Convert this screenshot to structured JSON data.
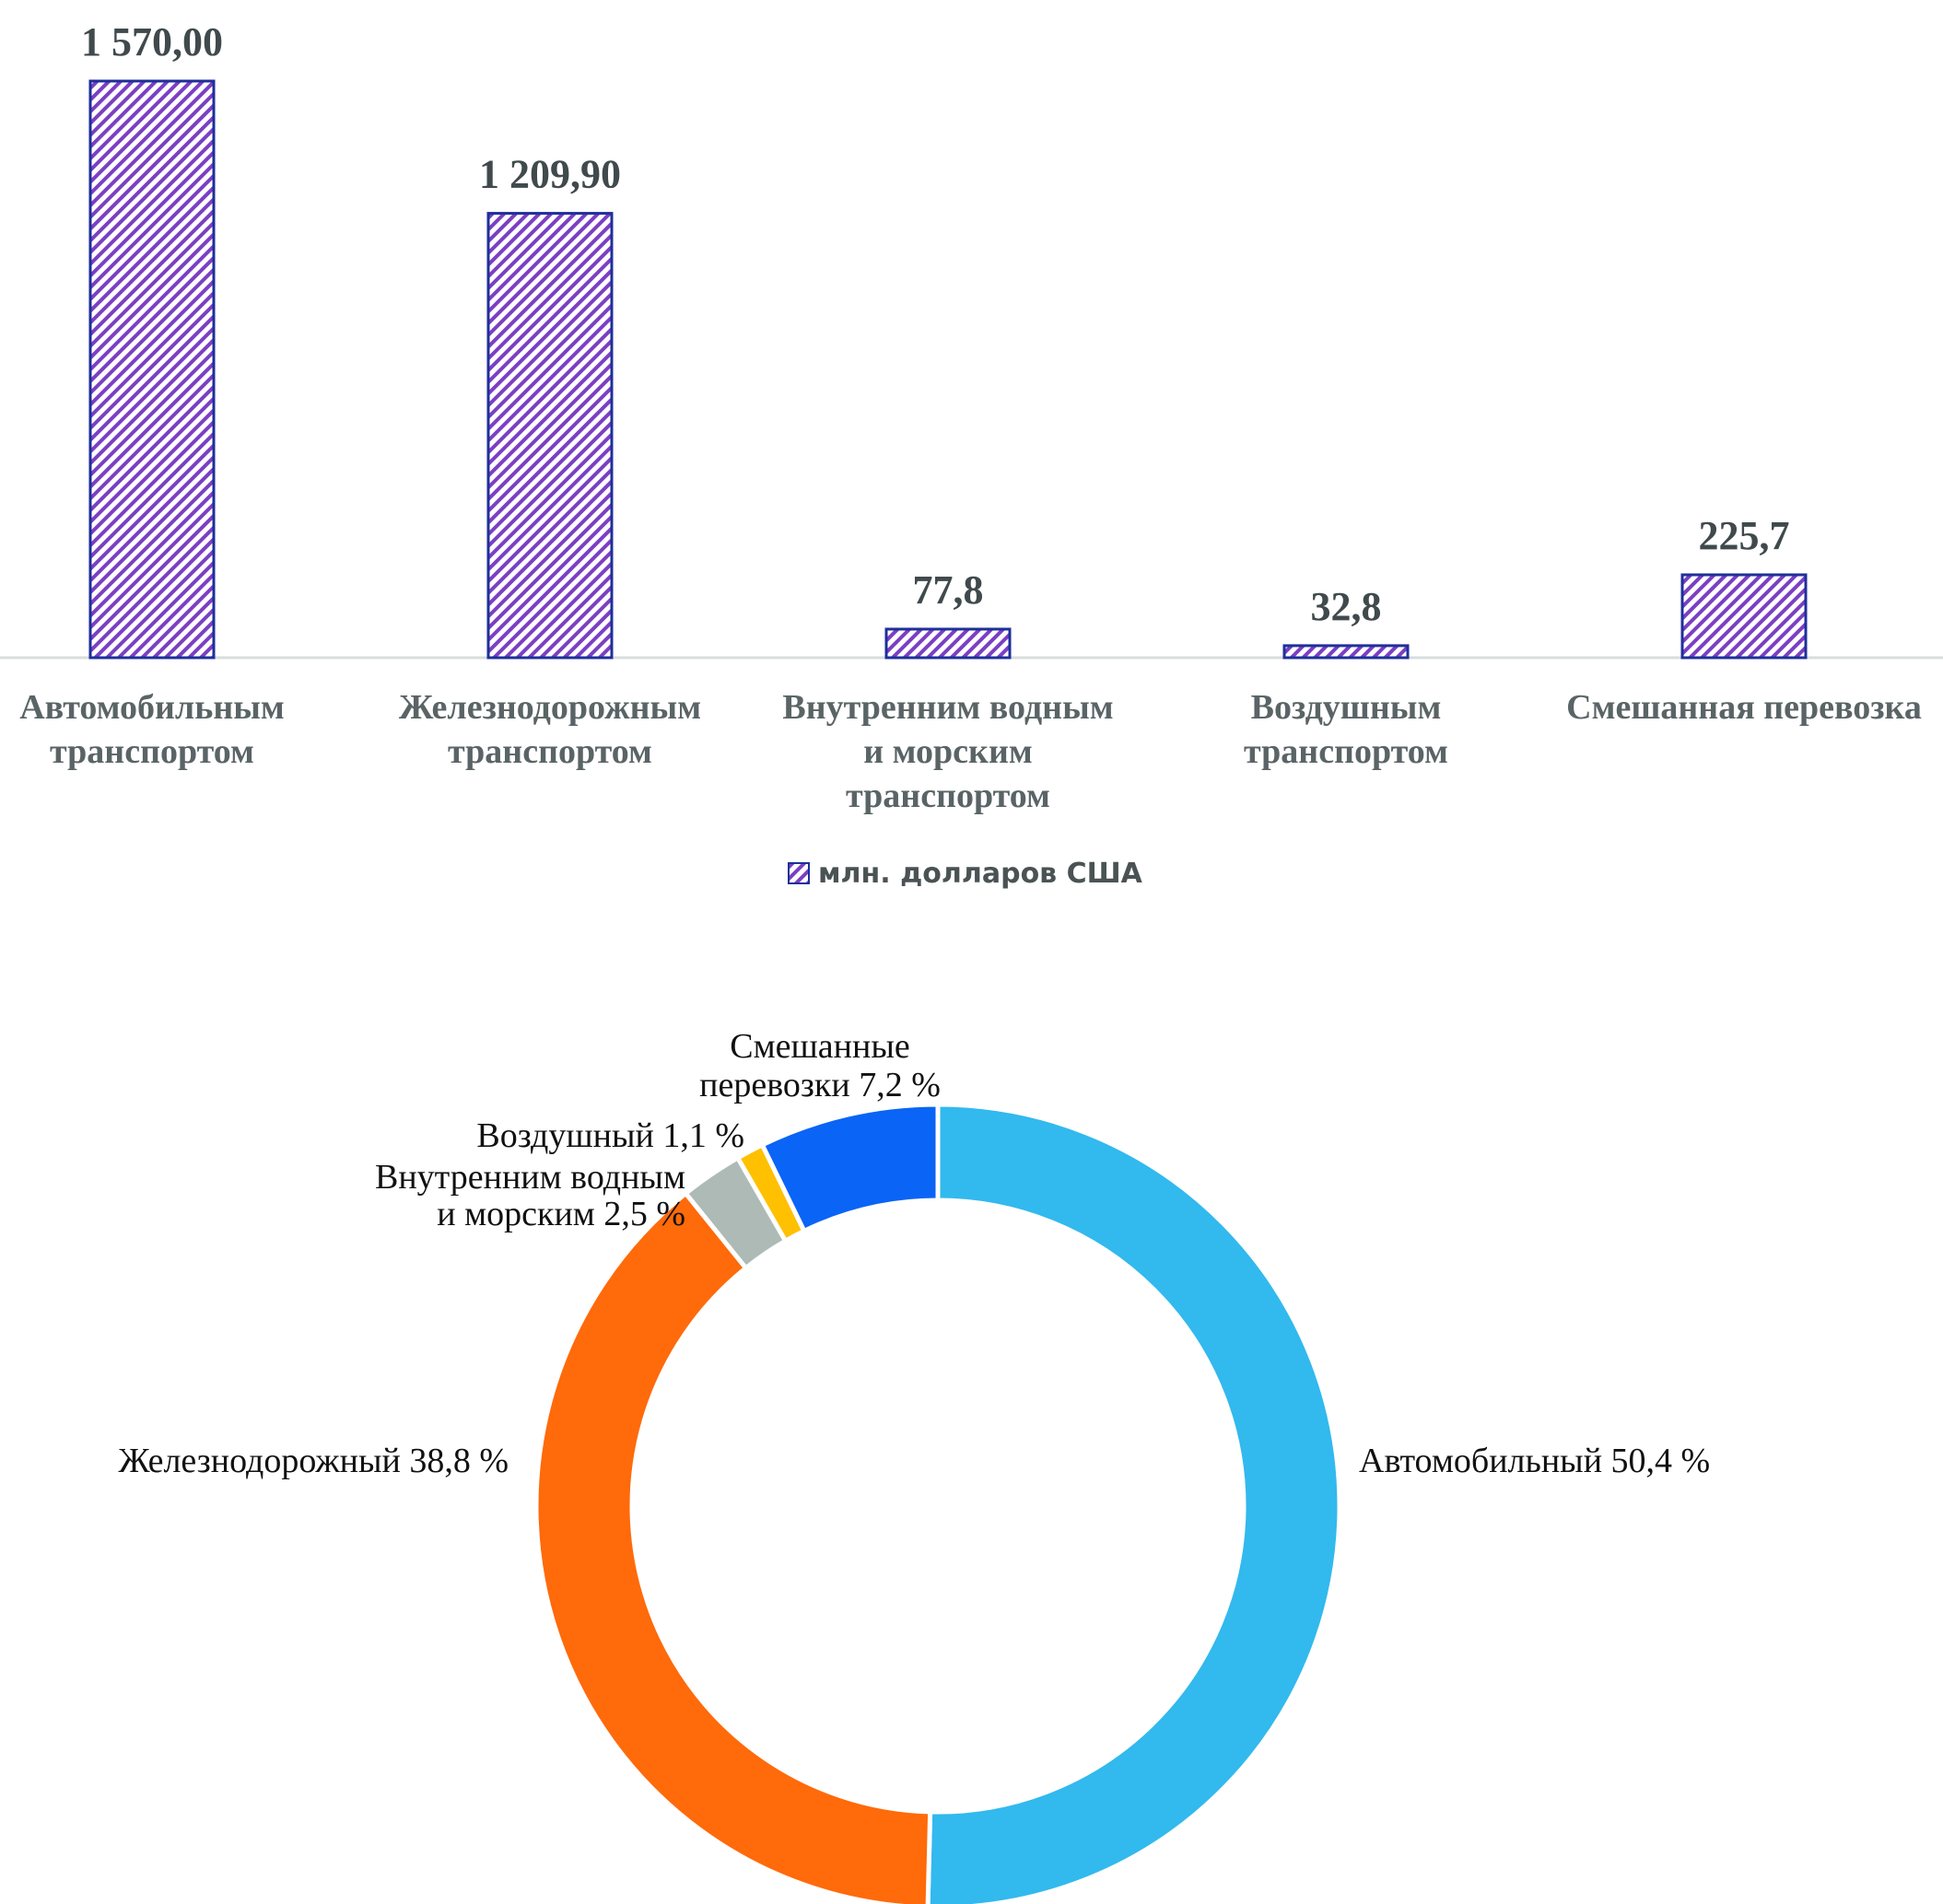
{
  "chart_data": [
    {
      "type": "bar",
      "categories": [
        [
          "Автомобильным",
          "транспортом"
        ],
        [
          "Железнодорожным",
          "транспортом"
        ],
        [
          "Внутренним водным",
          "и морским",
          "транспортом"
        ],
        [
          "Воздушным",
          "транспортом"
        ],
        [
          "Смешанная перевозка"
        ]
      ],
      "values": [
        1570.0,
        1209.9,
        77.8,
        32.8,
        225.7
      ],
      "value_labels": [
        "1 570,00",
        "1 209,90",
        "77,8",
        "32,8",
        "225,7"
      ],
      "series": [
        {
          "name": "млн. долларов США",
          "values": [
            1570.0,
            1209.9,
            77.8,
            32.8,
            225.7
          ]
        }
      ],
      "ylim": [
        0,
        1570
      ],
      "grid": false,
      "legend": "bottom-center",
      "colors": {
        "bar_stroke": "#1f2f9a",
        "hatch": "#7b3fc4",
        "axis": "#d9dcdd"
      }
    },
    {
      "type": "pie",
      "donut": true,
      "slices": [
        {
          "label": "Автомобильный 50,4 %",
          "value": 50.4,
          "color": "#32b9ee"
        },
        {
          "label": "Железнодорожный 38,8 %",
          "value": 38.8,
          "color": "#ff6a0a"
        },
        {
          "label": [
            "Внутренним водным",
            "и морским 2,5 %"
          ],
          "value": 2.5,
          "color": "#aebab5"
        },
        {
          "label": "Воздушный 1,1 %",
          "value": 1.1,
          "color": "#ffc000"
        },
        {
          "label": [
            "Смешанные",
            "перевозки 7,2 %"
          ],
          "value": 7.2,
          "color": "#0a64f5"
        }
      ]
    }
  ]
}
